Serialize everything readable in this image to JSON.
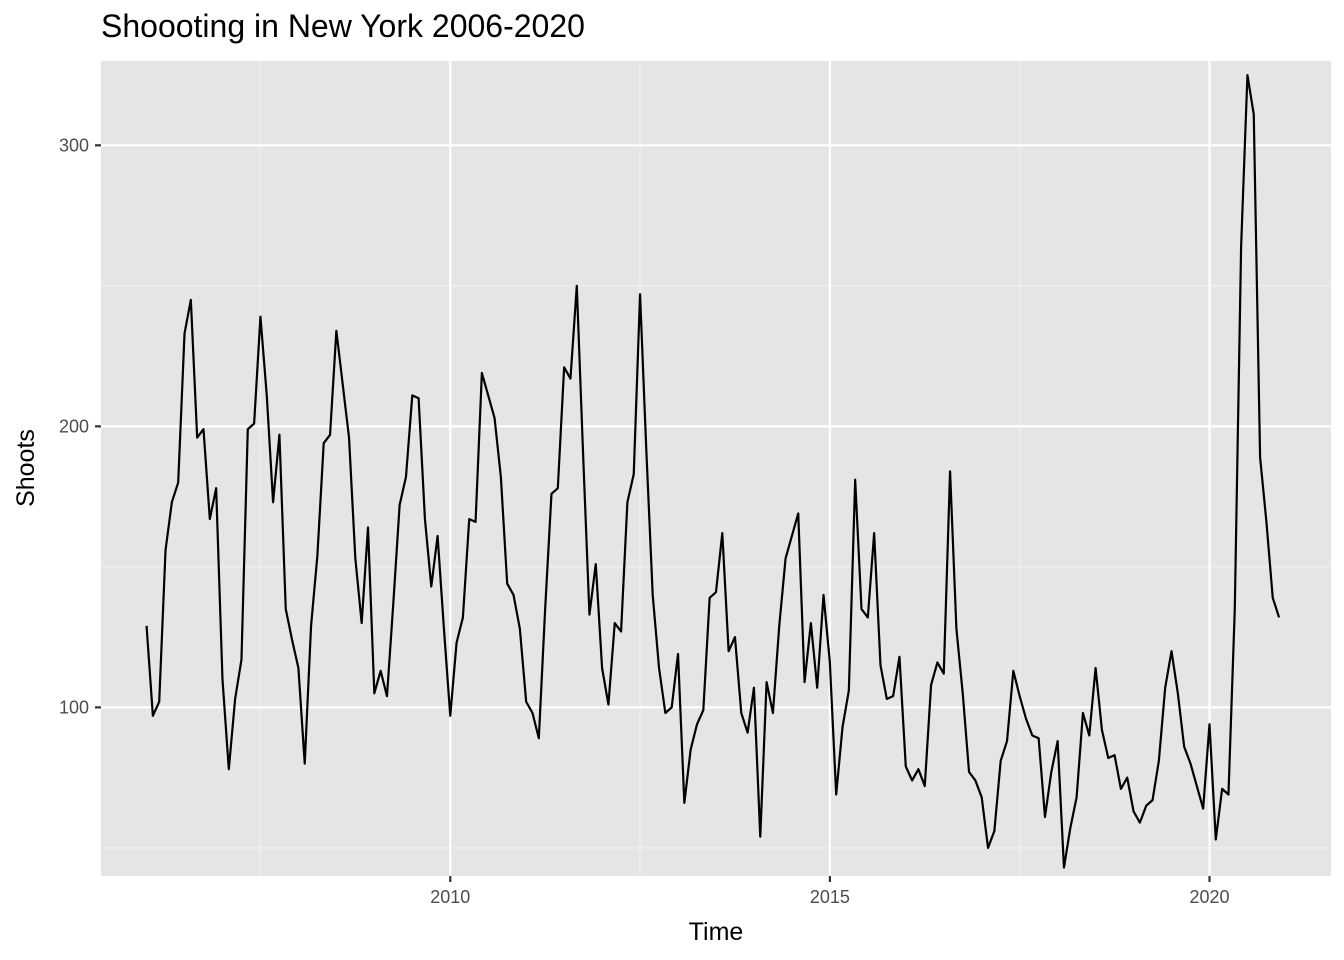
{
  "chart_data": {
    "type": "line",
    "title": "Shoooting in New York 2006-2020",
    "xlabel": "Time",
    "ylabel": "Shoots",
    "x_start": 2006.0,
    "x_step": 0.08333,
    "xlim": [
      2005.4,
      2021.6
    ],
    "ylim": [
      40,
      330
    ],
    "x_ticks": [
      2010,
      2015,
      2020
    ],
    "y_ticks": [
      100,
      200,
      300
    ],
    "grid": true,
    "legend": "none",
    "background": "#e5e5e5",
    "line_color": "#000000",
    "values": [
      129,
      97,
      102,
      156,
      173,
      180,
      233,
      245,
      196,
      199,
      167,
      178,
      110,
      78,
      103,
      117,
      199,
      201,
      239,
      211,
      173,
      197,
      135,
      124,
      114,
      80,
      129,
      154,
      194,
      197,
      234,
      215,
      196,
      153,
      130,
      164,
      105,
      113,
      104,
      137,
      172,
      182,
      211,
      210,
      167,
      143,
      161,
      128,
      97,
      123,
      132,
      167,
      166,
      219,
      211,
      203,
      182,
      144,
      140,
      128,
      102,
      98,
      89,
      135,
      176,
      178,
      221,
      217,
      250,
      190,
      133,
      151,
      114,
      101,
      130,
      127,
      173,
      183,
      247,
      191,
      140,
      114,
      98,
      100,
      119,
      66,
      85,
      94,
      99,
      139,
      141,
      162,
      120,
      125,
      98,
      91,
      107,
      54,
      109,
      98,
      129,
      153,
      161,
      169,
      109,
      130,
      107,
      140,
      116,
      69,
      93,
      106,
      181,
      135,
      132,
      162,
      115,
      103,
      104,
      118,
      79,
      74,
      78,
      72,
      108,
      116,
      112,
      184,
      128,
      105,
      77,
      74,
      68,
      50,
      56,
      81,
      88,
      113,
      104,
      96,
      90,
      89,
      61,
      77,
      88,
      43,
      57,
      68,
      98,
      90,
      114,
      92,
      82,
      83,
      71,
      75,
      63,
      59,
      65,
      67,
      81,
      107,
      120,
      105,
      86,
      80,
      72,
      64,
      94,
      53,
      71,
      69,
      135,
      264,
      325,
      311,
      189,
      166,
      139,
      132
    ]
  }
}
